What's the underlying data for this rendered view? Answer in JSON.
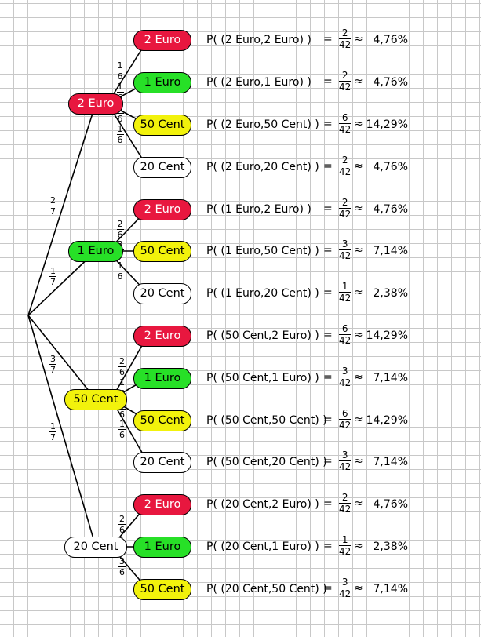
{
  "colors": {
    "2 Euro": "#e8173f",
    "1 Euro": "#27e027",
    "50 Cent": "#f2f20c",
    "20 Cent": "#ffffff"
  },
  "tree": {
    "root_edges": [
      {
        "prob": {
          "num": "2",
          "den": "7"
        }
      },
      {
        "prob": {
          "num": "1",
          "den": "7"
        }
      },
      {
        "prob": {
          "num": "3",
          "den": "7"
        }
      },
      {
        "prob": {
          "num": "1",
          "den": "7"
        }
      }
    ],
    "level1": [
      {
        "label": "2 Euro",
        "children": [
          {
            "label": "2 Euro",
            "prob": {
              "num": "1",
              "den": "6"
            }
          },
          {
            "label": "1 Euro",
            "prob": {
              "num": "1",
              "den": "6"
            }
          },
          {
            "label": "50 Cent",
            "prob": {
              "num": "3",
              "den": "6"
            }
          },
          {
            "label": "20 Cent",
            "prob": {
              "num": "1",
              "den": "6"
            }
          }
        ]
      },
      {
        "label": "1 Euro",
        "children": [
          {
            "label": "2 Euro",
            "prob": {
              "num": "2",
              "den": "6"
            }
          },
          {
            "label": "50 Cent",
            "prob": {
              "num": "3",
              "den": "6"
            }
          },
          {
            "label": "20 Cent",
            "prob": {
              "num": "1",
              "den": "6"
            }
          }
        ]
      },
      {
        "label": "50 Cent",
        "children": [
          {
            "label": "2 Euro",
            "prob": {
              "num": "2",
              "den": "6"
            }
          },
          {
            "label": "1 Euro",
            "prob": {
              "num": "1",
              "den": "6"
            }
          },
          {
            "label": "50 Cent",
            "prob": {
              "num": "2",
              "den": "6"
            }
          },
          {
            "label": "20 Cent",
            "prob": {
              "num": "1",
              "den": "6"
            }
          }
        ]
      },
      {
        "label": "20 Cent",
        "children": [
          {
            "label": "2 Euro",
            "prob": {
              "num": "2",
              "den": "6"
            }
          },
          {
            "label": "1 Euro",
            "prob": {
              "num": "1",
              "den": "6"
            }
          },
          {
            "label": "50 Cent",
            "prob": {
              "num": "3",
              "den": "6"
            }
          }
        ]
      }
    ]
  },
  "results": [
    {
      "expr": "P( (2 Euro,2 Euro) )",
      "num": "2",
      "den": "42",
      "percent": "4,76%"
    },
    {
      "expr": "P( (2 Euro,1 Euro) )",
      "num": "2",
      "den": "42",
      "percent": "4,76%"
    },
    {
      "expr": "P( (2 Euro,50 Cent) )",
      "num": "6",
      "den": "42",
      "percent": "14,29%"
    },
    {
      "expr": "P( (2 Euro,20 Cent) )",
      "num": "2",
      "den": "42",
      "percent": "4,76%"
    },
    {
      "expr": "P( (1 Euro,2 Euro) )",
      "num": "2",
      "den": "42",
      "percent": "4,76%"
    },
    {
      "expr": "P( (1 Euro,50 Cent) )",
      "num": "3",
      "den": "42",
      "percent": "7,14%"
    },
    {
      "expr": "P( (1 Euro,20 Cent) )",
      "num": "1",
      "den": "42",
      "percent": "2,38%"
    },
    {
      "expr": "P( (50 Cent,2 Euro) )",
      "num": "6",
      "den": "42",
      "percent": "14,29%"
    },
    {
      "expr": "P( (50 Cent,1 Euro) )",
      "num": "3",
      "den": "42",
      "percent": "7,14%"
    },
    {
      "expr": "P( (50 Cent,50 Cent) )",
      "num": "6",
      "den": "42",
      "percent": "14,29%"
    },
    {
      "expr": "P( (50 Cent,20 Cent) )",
      "num": "3",
      "den": "42",
      "percent": "7,14%"
    },
    {
      "expr": "P( (20 Cent,2 Euro) )",
      "num": "2",
      "den": "42",
      "percent": "4,76%"
    },
    {
      "expr": "P( (20 Cent,1 Euro) )",
      "num": "1",
      "den": "42",
      "percent": "2,38%"
    },
    {
      "expr": "P( (20 Cent,50 Cent) )",
      "num": "3",
      "den": "42",
      "percent": "7,14%"
    }
  ],
  "symbols": {
    "equals": "=",
    "approx": "≈"
  }
}
